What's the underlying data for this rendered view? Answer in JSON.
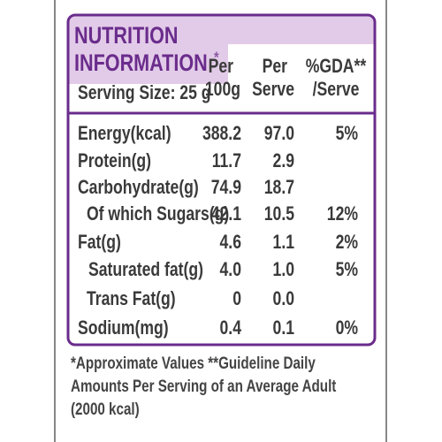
{
  "header": {
    "title_line1": "NUTRITION",
    "title_line2": "INFORMATION",
    "title_mark": "*",
    "columns": [
      {
        "line1": "Per",
        "line2": "100g"
      },
      {
        "line1": "Per",
        "line2": "Serve"
      },
      {
        "line1": "%GDA**",
        "line2": "/Serve"
      }
    ],
    "serving_size": "Serving Size: 25 g"
  },
  "rows": [
    {
      "label": "Energy(kcal)",
      "per_100g": "388.2",
      "per_serve": "97.0",
      "gda": "5%"
    },
    {
      "label": "Protein(g)",
      "per_100g": "11.7",
      "per_serve": "2.9"
    },
    {
      "label": "Carbohydrate(g)",
      "per_100g": "74.9",
      "per_serve": "18.7"
    },
    {
      "label": "Of which Sugars(g)",
      "per_100g": "42.1",
      "per_serve": "10.5",
      "gda": "12%"
    },
    {
      "label": "Fat(g)",
      "per_100g": "4.6",
      "per_serve": "1.1",
      "gda": "2%"
    },
    {
      "label": "Saturated fat(g)",
      "per_100g": "4.0",
      "per_serve": "1.0",
      "gda": "5%"
    },
    {
      "label": "Trans Fat(g)",
      "per_100g": "0",
      "per_serve": "0.0"
    },
    {
      "label": "Sodium(mg)",
      "per_100g": "0.4",
      "per_serve": "0.1",
      "gda": "0%"
    }
  ],
  "footnote": [
    "*Approximate Values **Guideline Daily",
    "Amounts Per Serving of an Average Adult",
    "(2000 kcal)"
  ]
}
